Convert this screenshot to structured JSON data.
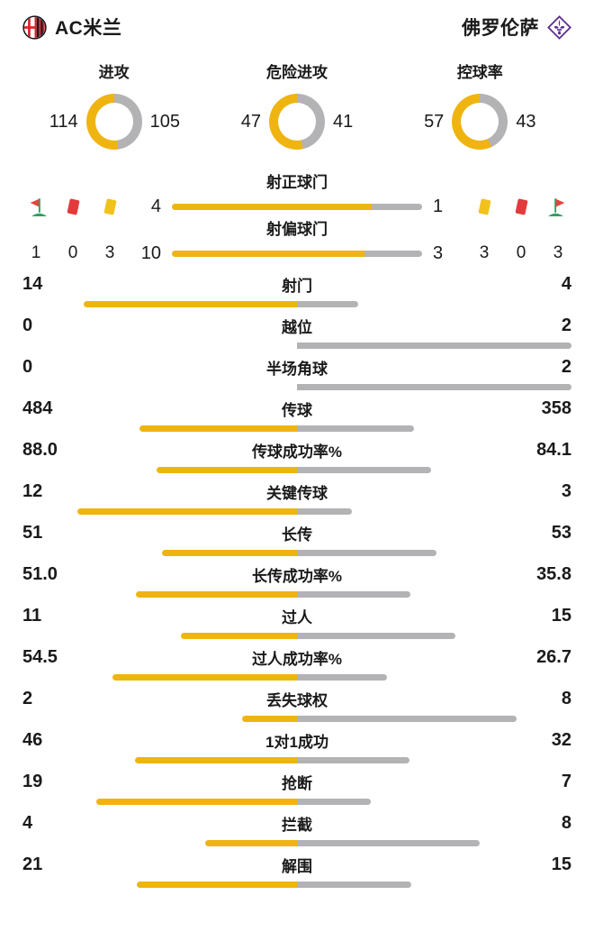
{
  "header": {
    "home_name": "AC米兰",
    "away_name": "佛罗伦萨"
  },
  "colors": {
    "home": "#F0B411",
    "away": "#B3B3B6",
    "text": "#1A1A1A",
    "milan_red": "#D8232A",
    "milan_black": "#17171B",
    "fiorentina_purple": "#5B2D8E",
    "card_red": "#E23B3B",
    "card_yellow": "#F2C21C",
    "flag_green": "#2FA05A",
    "flag_red": "#E8433E"
  },
  "chart_data": {
    "teams": [
      "AC米兰",
      "佛罗伦萨"
    ],
    "donuts": {
      "type": "donut",
      "items": [
        {
          "label": "进攻",
          "values": [
            114,
            105
          ]
        },
        {
          "label": "危险进攻",
          "values": [
            47,
            41
          ]
        },
        {
          "label": "控球率",
          "values": [
            57,
            43
          ]
        }
      ]
    },
    "shot_bars": {
      "type": "bar",
      "items": [
        {
          "label": "射正球门",
          "values": [
            4,
            1
          ]
        },
        {
          "label": "射偏球门",
          "values": [
            10,
            3
          ]
        }
      ]
    },
    "events": {
      "home": [
        {
          "icon": "corner-flag",
          "count": "1"
        },
        {
          "icon": "red-card",
          "count": "0"
        },
        {
          "icon": "yellow-card",
          "count": "3"
        }
      ],
      "away": [
        {
          "icon": "yellow-card",
          "count": "3"
        },
        {
          "icon": "red-card",
          "count": "0"
        },
        {
          "icon": "corner-flag",
          "count": "3"
        }
      ]
    },
    "stats": {
      "type": "bar",
      "items": [
        {
          "label": "射门",
          "values": [
            "14",
            "4"
          ]
        },
        {
          "label": "越位",
          "values": [
            "0",
            "2"
          ]
        },
        {
          "label": "半场角球",
          "values": [
            "0",
            "2"
          ]
        },
        {
          "label": "传球",
          "values": [
            "484",
            "358"
          ]
        },
        {
          "label": "传球成功率%",
          "values": [
            "88.0",
            "84.1"
          ]
        },
        {
          "label": "关键传球",
          "values": [
            "12",
            "3"
          ]
        },
        {
          "label": "长传",
          "values": [
            "51",
            "53"
          ]
        },
        {
          "label": "长传成功率%",
          "values": [
            "51.0",
            "35.8"
          ]
        },
        {
          "label": "过人",
          "values": [
            "11",
            "15"
          ]
        },
        {
          "label": "过人成功率%",
          "values": [
            "54.5",
            "26.7"
          ]
        },
        {
          "label": "丢失球权",
          "values": [
            "2",
            "8"
          ]
        },
        {
          "label": "1对1成功",
          "values": [
            "46",
            "32"
          ]
        },
        {
          "label": "抢断",
          "values": [
            "19",
            "7"
          ]
        },
        {
          "label": "拦截",
          "values": [
            "4",
            "8"
          ]
        },
        {
          "label": "解围",
          "values": [
            "21",
            "15"
          ]
        }
      ]
    }
  }
}
